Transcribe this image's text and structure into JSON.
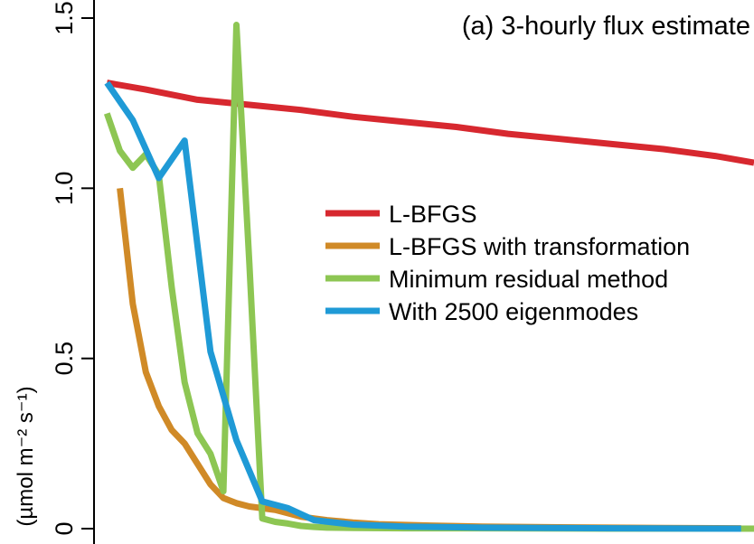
{
  "chart_data": {
    "type": "line",
    "title": "(a) 3-hourly flux estimate",
    "xlabel": "",
    "ylabel": "(µmol m⁻² s⁻¹)",
    "ylim": [
      0,
      1.5
    ],
    "y_ticks": [
      0,
      0.5,
      1.0,
      1.5
    ],
    "y_tick_labels": [
      "0",
      "0.5",
      "1.0",
      "1.5"
    ],
    "x_ticks": [],
    "xlim": [
      0,
      51
    ],
    "legend_position": "center-right",
    "grid": false,
    "series": [
      {
        "name": "L-BFGS",
        "color": "#d7282f",
        "x": [
          1,
          4,
          8,
          12,
          16,
          20,
          24,
          28,
          32,
          36,
          40,
          44,
          48,
          51
        ],
        "y": [
          1.31,
          1.29,
          1.26,
          1.245,
          1.23,
          1.21,
          1.195,
          1.18,
          1.16,
          1.145,
          1.13,
          1.115,
          1.095,
          1.075
        ]
      },
      {
        "name": "L-BFGS with transformation",
        "color": "#d08a27",
        "x": [
          2,
          3,
          4,
          5,
          6,
          7,
          8,
          9,
          10,
          11,
          12,
          13,
          14,
          16,
          18,
          20,
          22,
          26,
          30,
          36,
          44,
          50
        ],
        "y": [
          1.0,
          0.66,
          0.46,
          0.36,
          0.29,
          0.25,
          0.19,
          0.13,
          0.09,
          0.075,
          0.065,
          0.06,
          0.055,
          0.035,
          0.025,
          0.018,
          0.013,
          0.009,
          0.006,
          0.004,
          0.002,
          0.001
        ]
      },
      {
        "name": "Minimum residual method",
        "color": "#8dc653",
        "x": [
          1,
          2,
          3,
          4,
          5,
          6,
          7,
          8,
          9,
          10,
          11,
          12,
          13,
          14,
          15,
          16,
          17,
          18,
          20,
          24,
          30,
          40,
          51
        ],
        "y": [
          1.22,
          1.11,
          1.06,
          1.1,
          1.04,
          0.71,
          0.43,
          0.28,
          0.22,
          0.11,
          1.48,
          0.78,
          0.03,
          0.02,
          0.015,
          0.008,
          0.005,
          0.003,
          0.002,
          0.001,
          0.001,
          0.0,
          0.0
        ]
      },
      {
        "name": "With 2500 eigenmodes",
        "color": "#1f9ad6",
        "x": [
          1,
          3,
          5,
          7,
          9,
          11,
          13,
          15,
          17,
          20,
          24,
          30,
          40,
          50
        ],
        "y": [
          1.31,
          1.2,
          1.03,
          1.14,
          0.52,
          0.26,
          0.08,
          0.06,
          0.025,
          0.012,
          0.006,
          0.003,
          0.001,
          0.0
        ]
      }
    ]
  }
}
